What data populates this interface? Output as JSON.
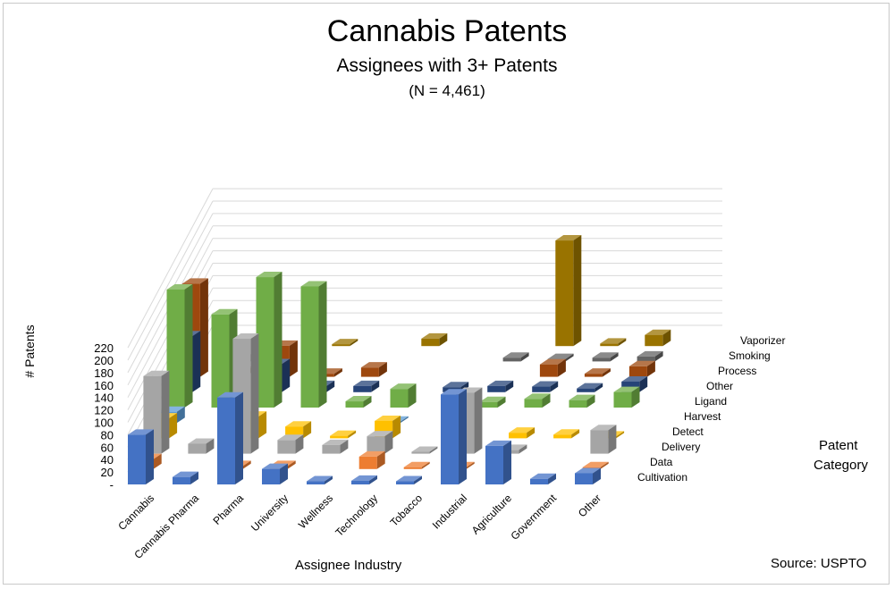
{
  "header": {
    "title": "Cannabis Patents",
    "subtitle": "Assignees with 3+ Patents",
    "note": "(N = 4,461)"
  },
  "axes": {
    "y_label": "# Patents",
    "x_label": "Assignee Industry",
    "z_label_line1": "Patent",
    "z_label_line2": "Category",
    "source": "Source: USPTO"
  },
  "chart_data": {
    "type": "bar",
    "style": "3d-column",
    "title": "Cannabis Patents",
    "subtitle": "Assignees with 3+ Patents",
    "xlabel": "Assignee Industry",
    "ylabel": "# Patents",
    "zlabel": "Patent Category",
    "ylim": [
      0,
      220
    ],
    "yticks": [
      "-",
      "20",
      "40",
      "60",
      "80",
      "100",
      "120",
      "140",
      "160",
      "180",
      "200",
      "220"
    ],
    "grid": true,
    "categories": [
      "Cannabis",
      "Cannabis Pharma",
      "Pharma",
      "University",
      "Wellness",
      "Technology",
      "Tobacco",
      "Industrial",
      "Agriculture",
      "Government",
      "Other"
    ],
    "series": [
      {
        "name": "Cultivation",
        "color": "#4472C4",
        "values": [
          80,
          12,
          140,
          25,
          5,
          6,
          5,
          145,
          62,
          9,
          18
        ]
      },
      {
        "name": "Data",
        "color": "#ED7D31",
        "values": [
          16,
          0,
          5,
          5,
          0,
          20,
          3,
          3,
          0,
          0,
          3
        ]
      },
      {
        "name": "Delivery",
        "color": "#A5A5A5",
        "values": [
          125,
          16,
          185,
          22,
          14,
          28,
          3,
          98,
          6,
          0,
          38
        ]
      },
      {
        "name": "Detect",
        "color": "#FFC000",
        "values": [
          32,
          0,
          35,
          19,
          4,
          28,
          0,
          0,
          9,
          6,
          3
        ]
      },
      {
        "name": "Harvest",
        "color": "#5B9BD5",
        "values": [
          18,
          0,
          0,
          0,
          0,
          2,
          0,
          0,
          0,
          0,
          0
        ]
      },
      {
        "name": "Ligand",
        "color": "#70AD47",
        "values": [
          190,
          150,
          210,
          195,
          10,
          30,
          0,
          9,
          14,
          12,
          25
        ]
      },
      {
        "name": "Other",
        "color": "#264478",
        "values": [
          90,
          0,
          45,
          10,
          10,
          0,
          8,
          10,
          9,
          6,
          17
        ]
      },
      {
        "name": "Process",
        "color": "#9E480E",
        "values": [
          150,
          8,
          50,
          5,
          15,
          0,
          0,
          0,
          20,
          5,
          17
        ]
      },
      {
        "name": "Smoking",
        "color": "#636363",
        "values": [
          0,
          3,
          0,
          0,
          0,
          0,
          0,
          6,
          4,
          6,
          8
        ]
      },
      {
        "name": "Vaporizer",
        "color": "#997300",
        "values": [
          0,
          0,
          0,
          3,
          0,
          12,
          0,
          0,
          170,
          4,
          18
        ]
      }
    ]
  }
}
